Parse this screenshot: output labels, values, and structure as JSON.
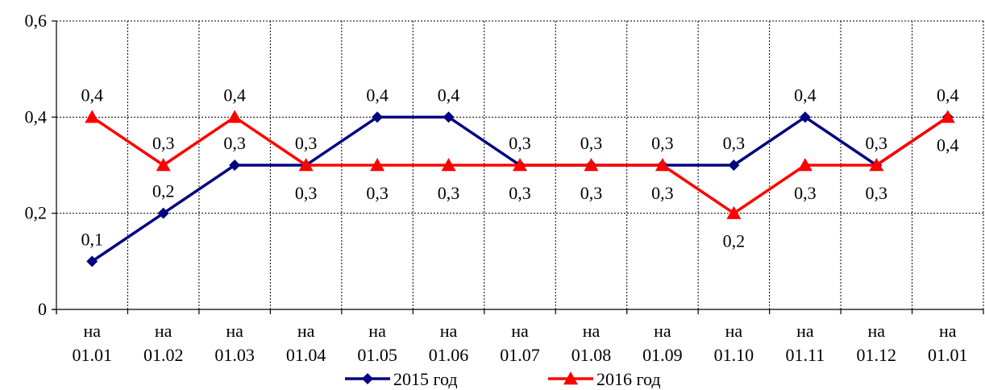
{
  "chart_data": {
    "type": "line",
    "categories": [
      [
        "на",
        "01.01"
      ],
      [
        "на",
        "01.02"
      ],
      [
        "на",
        "01.03"
      ],
      [
        "на",
        "01.04"
      ],
      [
        "на",
        "01.05"
      ],
      [
        "на",
        "01.06"
      ],
      [
        "на",
        "01.07"
      ],
      [
        "на",
        "01.08"
      ],
      [
        "на",
        "01.09"
      ],
      [
        "на",
        "01.10"
      ],
      [
        "на",
        "01.11"
      ],
      [
        "на",
        "01.12"
      ],
      [
        "на",
        "01.01"
      ]
    ],
    "ylim": [
      0,
      0.6
    ],
    "yticks": [
      {
        "value": 0,
        "label": "0"
      },
      {
        "value": 0.2,
        "label": "0,2"
      },
      {
        "value": 0.4,
        "label": "0,4"
      },
      {
        "value": 0.6,
        "label": "0,6"
      }
    ],
    "grid": true,
    "legend_position": "bottom",
    "series": [
      {
        "name": "2015 год",
        "color": "#000080",
        "marker": "diamond",
        "values": [
          0.1,
          0.2,
          0.3,
          0.3,
          0.4,
          0.4,
          0.3,
          0.3,
          0.3,
          0.3,
          0.4,
          0.3,
          0.4
        ],
        "labels": [
          "0,1",
          "0,2",
          "0,3",
          "0,3",
          "0,4",
          "0,4",
          "0,3",
          "0,3",
          "0,3",
          "0,3",
          "0,4",
          "0,3",
          "0,4"
        ]
      },
      {
        "name": "2016 год",
        "color": "#ff0000",
        "marker": "triangle",
        "values": [
          0.4,
          0.3,
          0.4,
          0.3,
          0.3,
          0.3,
          0.3,
          0.3,
          0.3,
          0.2,
          0.3,
          0.3,
          0.4
        ],
        "labels": [
          "0,4",
          "0,3",
          "0,4",
          "0,3",
          "0,3",
          "0,3",
          "0,3",
          "0,3",
          "0,3",
          "0,2",
          "0,3",
          "0,3",
          "0,4"
        ]
      }
    ]
  }
}
